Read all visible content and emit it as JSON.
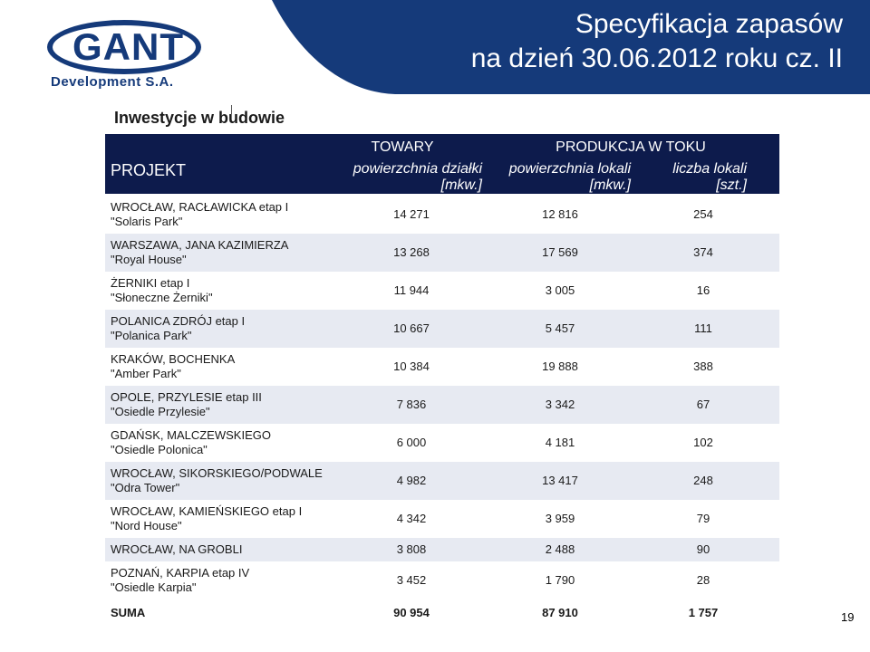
{
  "header": {
    "logo_text": "GANT",
    "logo_sub": "Development S.A.",
    "title_line1": "Specyfikacja zapasów",
    "title_line2": "na dzień 30.06.2012 roku cz. II",
    "banner_color": "#153a7a"
  },
  "subheading": "Inwestycje w budowie",
  "table": {
    "header": {
      "project": "PROJEKT",
      "towary": "TOWARY",
      "produkcja": "PRODUKCJA W TOKU",
      "col1": "powierzchnia działki [mkw.]",
      "col2": "powierzchnia lokali [mkw.]",
      "col3": "liczba lokali [szt.]"
    },
    "rows": [
      {
        "line1": "WROCŁAW, RACŁAWICKA etap I",
        "line2": "\"Solaris Park\"",
        "v1": "14 271",
        "v2": "12 816",
        "v3": "254"
      },
      {
        "line1": "WARSZAWA, JANA KAZIMIERZA",
        "line2": "\"Royal House\"",
        "v1": "13 268",
        "v2": "17 569",
        "v3": "374"
      },
      {
        "line1": "ŻERNIKI etap I",
        "line2": "\"Słoneczne Żerniki\"",
        "v1": "11 944",
        "v2": "3 005",
        "v3": "16"
      },
      {
        "line1": "POLANICA ZDRÓJ etap I",
        "line2": "\"Polanica Park\"",
        "v1": "10 667",
        "v2": "5 457",
        "v3": "111"
      },
      {
        "line1": "KRAKÓW, BOCHENKA",
        "line2": "\"Amber Park\"",
        "v1": "10 384",
        "v2": "19 888",
        "v3": "388"
      },
      {
        "line1": "OPOLE, PRZYLESIE etap III",
        "line2": "\"Osiedle Przylesie\"",
        "v1": "7 836",
        "v2": "3 342",
        "v3": "67"
      },
      {
        "line1": "GDAŃSK, MALCZEWSKIEGO",
        "line2": "\"Osiedle Polonica\"",
        "v1": "6 000",
        "v2": "4 181",
        "v3": "102"
      },
      {
        "line1": "WROCŁAW, SIKORSKIEGO/PODWALE",
        "line2": "\"Odra Tower\"",
        "v1": "4 982",
        "v2": "13 417",
        "v3": "248"
      },
      {
        "line1": "WROCŁAW, KAMIEŃSKIEGO etap I",
        "line2": "\"Nord House\"",
        "v1": "4 342",
        "v2": "3 959",
        "v3": "79"
      },
      {
        "line1": "WROCŁAW, NA GROBLI",
        "line2": "",
        "v1": "3 808",
        "v2": "2 488",
        "v3": "90"
      },
      {
        "line1": "POZNAŃ, KARPIA etap IV",
        "line2": "\"Osiedle Karpia\"",
        "v1": "3 452",
        "v2": "1 790",
        "v3": "28"
      }
    ],
    "sum": {
      "label": "SUMA",
      "v1": "90 954",
      "v2": "87 910",
      "v3": "1 757"
    }
  },
  "page_number": "19"
}
